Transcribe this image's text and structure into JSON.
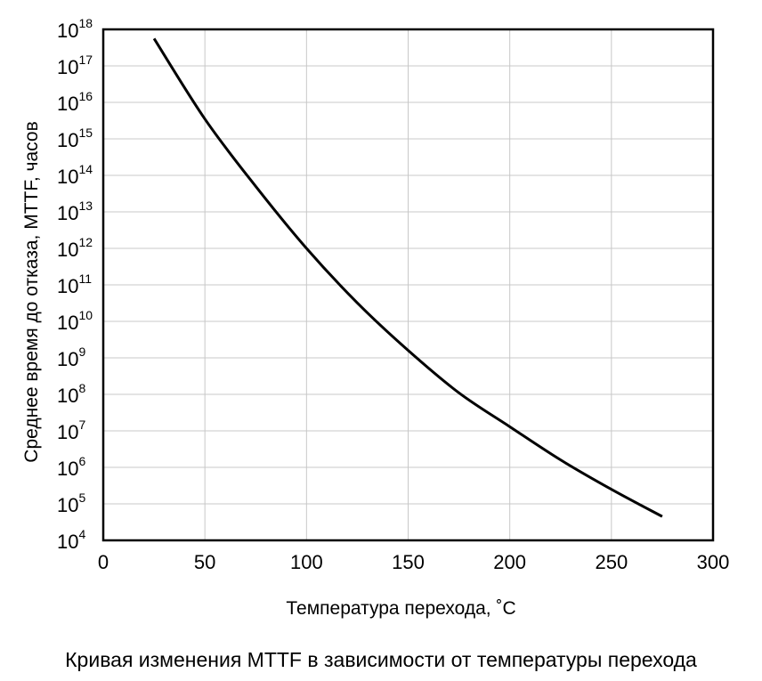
{
  "chart_data": {
    "type": "line",
    "xlabel": "Температура перехода, ˚C",
    "ylabel": "Среднее время до отказа, MTTF, часов",
    "caption": "Кривая изменения MTTF в зависимости от температуры перехода",
    "xlim": [
      0,
      300
    ],
    "ylim_exponent": [
      4,
      18
    ],
    "yscale": "log",
    "grid": true,
    "x_ticks": [
      "0",
      "50",
      "100",
      "150",
      "200",
      "250",
      "300"
    ],
    "y_tick_base": "10",
    "y_tick_exponents": [
      "4",
      "5",
      "6",
      "7",
      "8",
      "9",
      "10",
      "11",
      "12",
      "13",
      "14",
      "15",
      "16",
      "17",
      "18"
    ],
    "series": [
      {
        "x": [
          25,
          50,
          75,
          100,
          125,
          150,
          175,
          200,
          225,
          250,
          275
        ],
        "y": [
          5.6e+17,
          3500000000000000.0,
          50000000000000.0,
          1000000000000.0,
          32000000000.0,
          1600000000.0,
          110000000.0,
          13000000.0,
          1600000.0,
          250000.0,
          45000.0
        ]
      }
    ]
  }
}
